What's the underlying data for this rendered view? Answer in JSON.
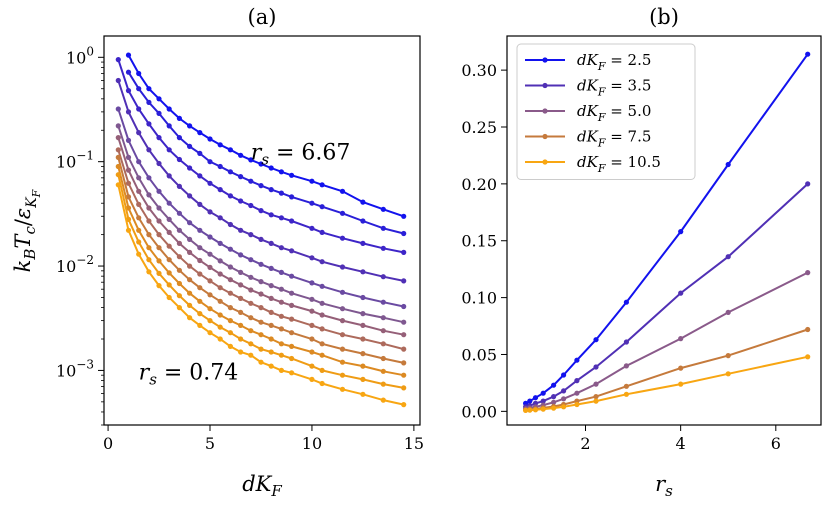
{
  "chart_data": [
    {
      "panel": "a",
      "type": "line",
      "title": "(a)",
      "xlabel": "dK_F",
      "ylabel": "k_B T_c / ε_{K_F}",
      "yscale": "log",
      "xlim": [
        -0.2,
        15.3
      ],
      "ylim": [
        0.0003,
        1.6
      ],
      "xticks": [
        0,
        5,
        10,
        15
      ],
      "xtick_labels": [
        "0",
        "5",
        "10",
        "15"
      ],
      "yticks": [
        0.001,
        0.01,
        0.1,
        1
      ],
      "ytick_labels": [
        {
          "base": "10",
          "exp": "−3"
        },
        {
          "base": "10",
          "exp": "−2"
        },
        {
          "base": "10",
          "exp": "−1"
        },
        {
          "base": "10",
          "exp": "0"
        }
      ],
      "annotations": [
        {
          "text": "r_s = 6.67",
          "x": 7.0,
          "y": 0.105
        },
        {
          "text": "r_s = 0.74",
          "x": 1.5,
          "y": 0.00082
        }
      ],
      "series": [
        {
          "rs": 6.67,
          "color": "#1212ee",
          "x": [
            1.0,
            1.5,
            2.0,
            2.5,
            3.0,
            3.5,
            4.0,
            4.5,
            5.0,
            5.5,
            6.0,
            6.5,
            7.0,
            7.5,
            8.0,
            8.5,
            9.0,
            10.0,
            10.5,
            11.5,
            12.5,
            13.5,
            14.5
          ],
          "y": [
            1.05,
            0.7,
            0.5,
            0.4,
            0.32,
            0.26,
            0.22,
            0.19,
            0.165,
            0.145,
            0.13,
            0.115,
            0.104,
            0.095,
            0.087,
            0.08,
            0.074,
            0.065,
            0.06,
            0.052,
            0.041,
            0.035,
            0.03
          ]
        },
        {
          "rs": 5.0,
          "color": "#2a1fd8",
          "x": [
            1.0,
            1.5,
            2.0,
            2.5,
            3.0,
            3.5,
            4.0,
            4.5,
            5.0,
            5.5,
            6.0,
            6.5,
            7.0,
            7.5,
            8.0,
            8.5,
            9.0,
            10.0,
            10.5,
            11.5,
            12.5,
            13.5,
            14.5
          ],
          "y": [
            0.72,
            0.5,
            0.37,
            0.29,
            0.22,
            0.17,
            0.14,
            0.12,
            0.1,
            0.09,
            0.08,
            0.072,
            0.065,
            0.059,
            0.054,
            0.05,
            0.046,
            0.04,
            0.037,
            0.032,
            0.027,
            0.023,
            0.0205
          ]
        },
        {
          "rs": 4.0,
          "color": "#3d25c8",
          "x": [
            0.5,
            1.0,
            1.5,
            2.0,
            2.5,
            3.0,
            3.5,
            4.0,
            4.5,
            5.0,
            5.5,
            6.0,
            6.5,
            7.0,
            7.5,
            8.0,
            8.5,
            9.0,
            10.0,
            10.5,
            11.5,
            12.5,
            13.5,
            14.5
          ],
          "y": [
            0.95,
            0.48,
            0.32,
            0.23,
            0.17,
            0.13,
            0.105,
            0.087,
            0.073,
            0.062,
            0.054,
            0.047,
            0.042,
            0.038,
            0.034,
            0.031,
            0.029,
            0.027,
            0.023,
            0.021,
            0.0185,
            0.0165,
            0.0148,
            0.0135
          ]
        },
        {
          "rs": 2.86,
          "color": "#5030b5",
          "x": [
            0.5,
            1.0,
            1.5,
            2.0,
            2.5,
            3.0,
            3.5,
            4.0,
            4.5,
            5.0,
            5.5,
            6.0,
            6.5,
            7.0,
            7.5,
            8.0,
            8.5,
            9.0,
            10.0,
            10.5,
            11.5,
            12.5,
            13.5,
            14.5
          ],
          "y": [
            0.6,
            0.3,
            0.19,
            0.13,
            0.096,
            0.073,
            0.058,
            0.047,
            0.039,
            0.033,
            0.029,
            0.025,
            0.022,
            0.02,
            0.018,
            0.0165,
            0.015,
            0.014,
            0.012,
            0.011,
            0.0098,
            0.0088,
            0.0079,
            0.0072
          ]
        },
        {
          "rs": 2.22,
          "color": "#6a4aa2",
          "x": [
            0.5,
            1.0,
            1.5,
            2.0,
            2.5,
            3.0,
            3.5,
            4.0,
            4.5,
            5.0,
            5.5,
            6.0,
            6.5,
            7.0,
            7.5,
            8.0,
            8.5,
            9.0,
            10.0,
            10.5,
            11.5,
            12.5,
            13.5,
            14.5
          ],
          "y": [
            0.32,
            0.16,
            0.1,
            0.07,
            0.052,
            0.04,
            0.032,
            0.026,
            0.022,
            0.019,
            0.0165,
            0.0145,
            0.0128,
            0.0115,
            0.0104,
            0.0095,
            0.0087,
            0.008,
            0.0069,
            0.0064,
            0.0056,
            0.005,
            0.0045,
            0.0041
          ]
        },
        {
          "rs": 1.82,
          "color": "#7f5890",
          "x": [
            0.5,
            1.0,
            1.5,
            2.0,
            2.5,
            3.0,
            3.5,
            4.0,
            4.5,
            5.0,
            5.5,
            6.0,
            6.5,
            7.0,
            7.5,
            8.0,
            8.5,
            9.0,
            10.0,
            10.5,
            11.5,
            12.5,
            13.5,
            14.5
          ],
          "y": [
            0.22,
            0.11,
            0.07,
            0.048,
            0.036,
            0.028,
            0.022,
            0.018,
            0.015,
            0.013,
            0.0112,
            0.0098,
            0.0087,
            0.0078,
            0.0071,
            0.0065,
            0.006,
            0.0055,
            0.0048,
            0.0044,
            0.0039,
            0.0035,
            0.0032,
            0.0029
          ]
        },
        {
          "rs": 1.54,
          "color": "#955f78",
          "x": [
            0.5,
            1.0,
            1.5,
            2.0,
            2.5,
            3.0,
            3.5,
            4.0,
            4.5,
            5.0,
            5.5,
            6.0,
            6.5,
            7.0,
            7.5,
            8.0,
            8.5,
            9.0,
            10.0,
            10.5,
            11.5,
            12.5,
            13.5,
            14.5
          ],
          "y": [
            0.17,
            0.083,
            0.052,
            0.036,
            0.027,
            0.021,
            0.0165,
            0.0135,
            0.0113,
            0.0097,
            0.0084,
            0.0074,
            0.0066,
            0.0059,
            0.0054,
            0.0049,
            0.0045,
            0.0042,
            0.0037,
            0.0034,
            0.003,
            0.0027,
            0.0024,
            0.0022
          ]
        },
        {
          "rs": 1.33,
          "color": "#ad6a5c",
          "x": [
            0.5,
            1.0,
            1.5,
            2.0,
            2.5,
            3.0,
            3.5,
            4.0,
            4.5,
            5.0,
            5.5,
            6.0,
            6.5,
            7.0,
            7.5,
            8.0,
            8.5,
            9.0,
            10.0,
            10.5,
            11.5,
            12.5,
            13.5,
            14.5
          ],
          "y": [
            0.13,
            0.062,
            0.039,
            0.027,
            0.02,
            0.0155,
            0.0123,
            0.01,
            0.0084,
            0.0072,
            0.0062,
            0.0055,
            0.0049,
            0.0044,
            0.004,
            0.0036,
            0.0033,
            0.0031,
            0.0027,
            0.0025,
            0.0022,
            0.002,
            0.0018,
            0.0016
          ]
        },
        {
          "rs": 1.11,
          "color": "#c57a3c",
          "x": [
            0.5,
            1.0,
            1.5,
            2.0,
            2.5,
            3.0,
            3.5,
            4.0,
            4.5,
            5.0,
            5.5,
            6.0,
            6.5,
            7.0,
            7.5,
            8.0,
            8.5,
            9.0,
            10.0,
            10.5,
            11.5,
            12.5,
            13.5,
            14.5
          ],
          "y": [
            0.11,
            0.046,
            0.029,
            0.02,
            0.015,
            0.0115,
            0.0091,
            0.0074,
            0.0062,
            0.0053,
            0.0046,
            0.004,
            0.0036,
            0.0032,
            0.0029,
            0.0027,
            0.0025,
            0.0023,
            0.002,
            0.0018,
            0.0016,
            0.00145,
            0.0013,
            0.00118
          ]
        },
        {
          "rs": 0.95,
          "color": "#dc8a22",
          "x": [
            0.5,
            1.0,
            1.5,
            2.0,
            2.5,
            3.0,
            3.5,
            4.0,
            4.5,
            5.0,
            5.5,
            6.0,
            6.5,
            7.0,
            7.5,
            8.0,
            8.5,
            9.0,
            10.0,
            10.5,
            11.5,
            12.5,
            13.5,
            14.5
          ],
          "y": [
            0.09,
            0.036,
            0.022,
            0.015,
            0.0112,
            0.0086,
            0.0068,
            0.0055,
            0.0046,
            0.0039,
            0.0034,
            0.003,
            0.0027,
            0.0024,
            0.0022,
            0.002,
            0.0018,
            0.0017,
            0.0015,
            0.0014,
            0.0012,
            0.0011,
            0.00098,
            0.0009
          ]
        },
        {
          "rs": 0.83,
          "color": "#ef9c14",
          "x": [
            0.5,
            1.0,
            1.5,
            2.0,
            2.5,
            3.0,
            3.5,
            4.0,
            4.5,
            5.0,
            5.5,
            6.0,
            6.5,
            7.0,
            7.5,
            8.0,
            8.5,
            9.0,
            10.0,
            10.5,
            11.5,
            12.5,
            13.5,
            14.5
          ],
          "y": [
            0.075,
            0.028,
            0.017,
            0.0115,
            0.0085,
            0.0066,
            0.0052,
            0.0042,
            0.0035,
            0.003,
            0.0026,
            0.0023,
            0.002,
            0.0018,
            0.0016,
            0.0015,
            0.0014,
            0.0013,
            0.0011,
            0.001,
            0.0009,
            0.00082,
            0.00074,
            0.00068
          ]
        },
        {
          "rs": 0.74,
          "color": "#f8a612",
          "x": [
            0.5,
            1.0,
            1.5,
            2.0,
            2.5,
            3.0,
            3.5,
            4.0,
            4.5,
            5.0,
            5.5,
            6.0,
            6.5,
            7.0,
            7.5,
            8.0,
            8.5,
            9.0,
            10.0,
            10.5,
            11.5,
            12.5,
            13.5,
            14.5
          ],
          "y": [
            0.06,
            0.022,
            0.013,
            0.0088,
            0.0065,
            0.005,
            0.004,
            0.0032,
            0.0027,
            0.0023,
            0.002,
            0.0017,
            0.0015,
            0.0014,
            0.0012,
            0.0011,
            0.001,
            0.00095,
            0.00082,
            0.00075,
            0.00066,
            0.00059,
            0.00052,
            0.00047
          ]
        }
      ]
    },
    {
      "panel": "b",
      "type": "line",
      "title": "(b)",
      "xlabel": "r_s",
      "xlim": [
        0.35,
        6.95
      ],
      "ylim": [
        -0.012,
        0.33
      ],
      "xticks": [
        2,
        4,
        6
      ],
      "xtick_labels": [
        "2",
        "4",
        "6"
      ],
      "yticks": [
        0.0,
        0.05,
        0.1,
        0.15,
        0.2,
        0.25,
        0.3
      ],
      "ytick_labels": [
        "0.00",
        "0.05",
        "0.10",
        "0.15",
        "0.20",
        "0.25",
        "0.30"
      ],
      "legend_position": "top-left",
      "series": [
        {
          "name": "dK_F = 2.5",
          "color": "#1212ee",
          "x": [
            0.74,
            0.83,
            0.95,
            1.11,
            1.33,
            1.54,
            1.82,
            2.22,
            2.86,
            4.0,
            5.0,
            6.67
          ],
          "y": [
            0.007,
            0.009,
            0.012,
            0.016,
            0.023,
            0.032,
            0.045,
            0.063,
            0.096,
            0.158,
            0.217,
            0.314
          ]
        },
        {
          "name": "dK_F = 3.5",
          "color": "#5030b5",
          "x": [
            0.74,
            0.83,
            0.95,
            1.11,
            1.33,
            1.54,
            1.82,
            2.22,
            2.86,
            4.0,
            5.0,
            6.67
          ],
          "y": [
            0.004,
            0.005,
            0.007,
            0.009,
            0.013,
            0.018,
            0.027,
            0.039,
            0.061,
            0.104,
            0.136,
            0.2
          ]
        },
        {
          "name": "dK_F = 5.0",
          "color": "#8a5a8a",
          "x": [
            0.74,
            0.83,
            0.95,
            1.11,
            1.33,
            1.54,
            1.82,
            2.22,
            2.86,
            4.0,
            5.0,
            6.67
          ],
          "y": [
            0.0023,
            0.003,
            0.004,
            0.0055,
            0.008,
            0.011,
            0.016,
            0.024,
            0.04,
            0.064,
            0.087,
            0.122
          ]
        },
        {
          "name": "dK_F = 7.5",
          "color": "#c57a3c",
          "x": [
            0.74,
            0.83,
            0.95,
            1.11,
            1.33,
            1.54,
            1.82,
            2.22,
            2.86,
            4.0,
            5.0,
            6.67
          ],
          "y": [
            0.0012,
            0.0016,
            0.0021,
            0.003,
            0.0043,
            0.006,
            0.009,
            0.013,
            0.022,
            0.038,
            0.049,
            0.072
          ]
        },
        {
          "name": "dK_F = 10.5",
          "color": "#f8a612",
          "x": [
            0.74,
            0.83,
            0.95,
            1.11,
            1.33,
            1.54,
            1.82,
            2.22,
            2.86,
            4.0,
            5.0,
            6.67
          ],
          "y": [
            0.0008,
            0.001,
            0.0014,
            0.002,
            0.0029,
            0.004,
            0.006,
            0.009,
            0.015,
            0.024,
            0.033,
            0.048
          ]
        }
      ]
    }
  ]
}
